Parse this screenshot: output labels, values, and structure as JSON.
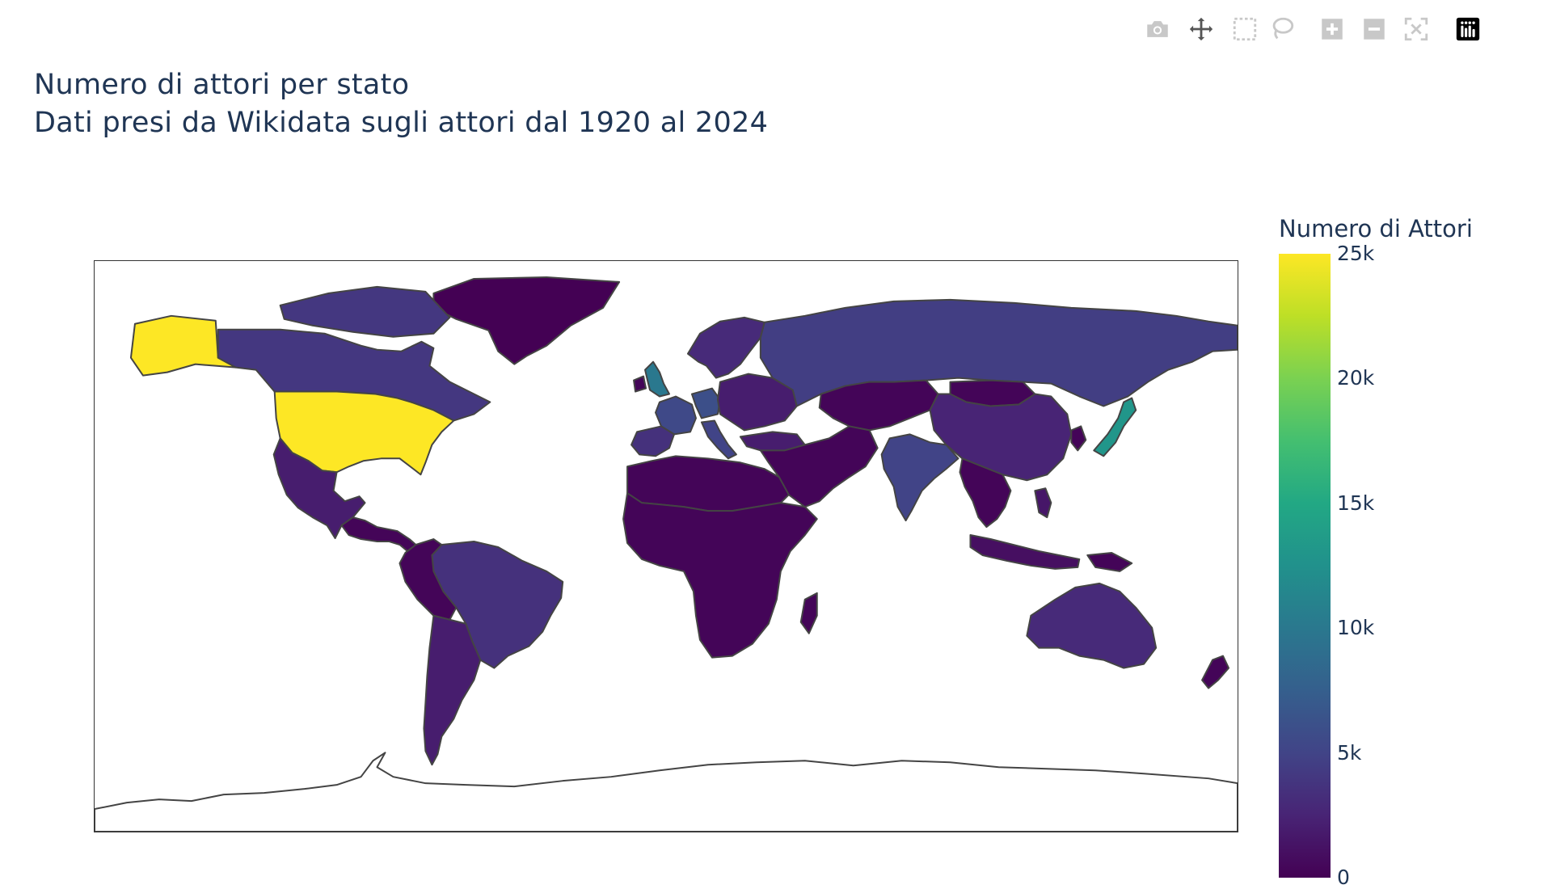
{
  "toolbar": {
    "buttons": [
      {
        "name": "camera-icon",
        "label": "Download plot as a png"
      },
      {
        "name": "pan-icon",
        "label": "Pan"
      },
      {
        "name": "box-select-icon",
        "label": "Box Select"
      },
      {
        "name": "lasso-select-icon",
        "label": "Lasso Select"
      },
      {
        "name": "zoom-in-icon",
        "label": "Zoom in"
      },
      {
        "name": "zoom-out-icon",
        "label": "Zoom out"
      },
      {
        "name": "reset-view-icon",
        "label": "Reset"
      },
      {
        "name": "plotly-logo-icon",
        "label": "Produced with Plotly"
      }
    ]
  },
  "chart_data": {
    "type": "choropleth",
    "title": "Numero di attori per stato",
    "subtitle": "Dati presi da Wikidata sugli attori dal 1920 al 2024",
    "colorbar": {
      "title": "Numero di Attori",
      "tick_labels": [
        "25k",
        "20k",
        "15k",
        "10k",
        "5k",
        "0"
      ],
      "tick_values": [
        25000,
        20000,
        15000,
        10000,
        5000,
        0
      ],
      "range": [
        0,
        25000
      ],
      "colorscale": "Viridis"
    },
    "regions": [
      {
        "name": "United States",
        "value": 25000
      },
      {
        "name": "Japan",
        "value": 13000
      },
      {
        "name": "United Kingdom",
        "value": 10000
      },
      {
        "name": "Germany",
        "value": 6000
      },
      {
        "name": "France",
        "value": 5500
      },
      {
        "name": "Italy",
        "value": 5000
      },
      {
        "name": "India",
        "value": 5000
      },
      {
        "name": "Russia",
        "value": 4500
      },
      {
        "name": "Canada",
        "value": 4000
      },
      {
        "name": "Brazil",
        "value": 3500
      },
      {
        "name": "Spain",
        "value": 3500
      },
      {
        "name": "Sweden",
        "value": 3000
      },
      {
        "name": "Australia",
        "value": 3000
      },
      {
        "name": "China",
        "value": 2500
      },
      {
        "name": "Mexico",
        "value": 2000
      },
      {
        "name": "Argentina",
        "value": 2000
      },
      {
        "name": "Turkey",
        "value": 2000
      },
      {
        "name": "Poland",
        "value": 2000
      },
      {
        "name": "Philippines",
        "value": 1500
      },
      {
        "name": "Indonesia",
        "value": 1000
      },
      {
        "name": "Other countries",
        "value": 300
      },
      {
        "name": "Greenland",
        "value": 0
      }
    ],
    "colors": {
      "border": "#444444",
      "frame": "#333333",
      "title": "#1f3554"
    }
  }
}
